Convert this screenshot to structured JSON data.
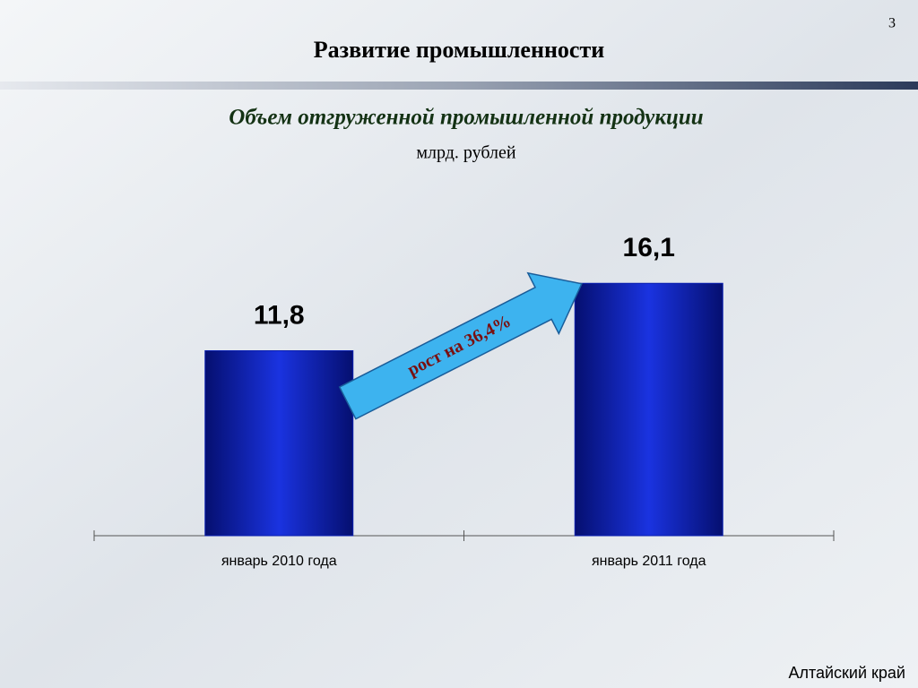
{
  "page_number": "3",
  "header": "Развитие промышленности",
  "footer": "Алтайский край",
  "chart_data": {
    "type": "bar",
    "title": "Объем отгруженной промышленной продукции",
    "subtitle": "млрд. рублей",
    "categories": [
      "январь 2010 года",
      "январь 2011 года"
    ],
    "values": [
      11.8,
      16.1
    ],
    "value_labels": [
      "11,8",
      "16,1"
    ],
    "annotation": "рост на 36,4%",
    "color": "#0a1fb0",
    "ylim": [
      0,
      18
    ]
  }
}
